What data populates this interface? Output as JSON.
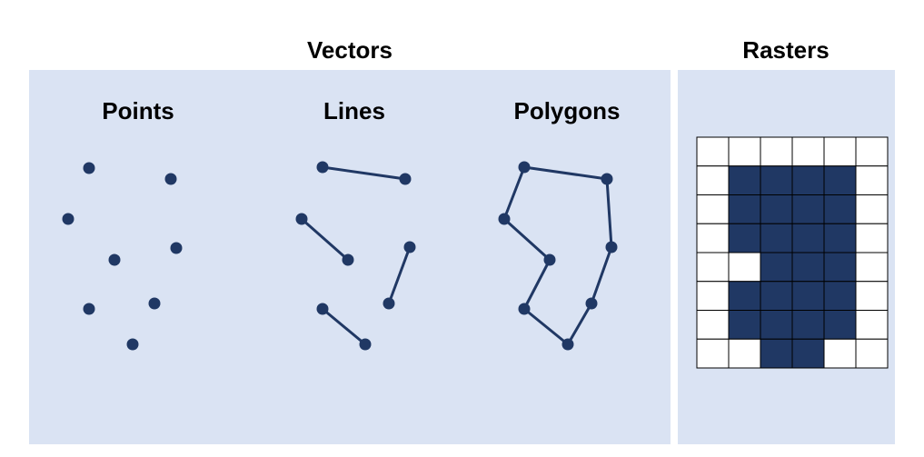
{
  "vectors_heading": "Vectors",
  "rasters_heading": "Rasters",
  "points_label": "Points",
  "lines_label": "Lines",
  "polygons_label": "Polygons",
  "colors": {
    "panel": "#dae3f3",
    "feature": "#203864",
    "grid_line": "#000000",
    "empty_cell": "#ffffff"
  },
  "raster": {
    "columns": 6,
    "rows": 8,
    "filled": [
      [
        0,
        0,
        0,
        0,
        0,
        0
      ],
      [
        0,
        1,
        1,
        1,
        1,
        0
      ],
      [
        0,
        1,
        1,
        1,
        1,
        0
      ],
      [
        0,
        1,
        1,
        1,
        1,
        0
      ],
      [
        0,
        0,
        1,
        1,
        1,
        0
      ],
      [
        0,
        1,
        1,
        1,
        1,
        0
      ],
      [
        0,
        1,
        1,
        1,
        1,
        0
      ],
      [
        0,
        0,
        1,
        1,
        0,
        0
      ]
    ]
  }
}
